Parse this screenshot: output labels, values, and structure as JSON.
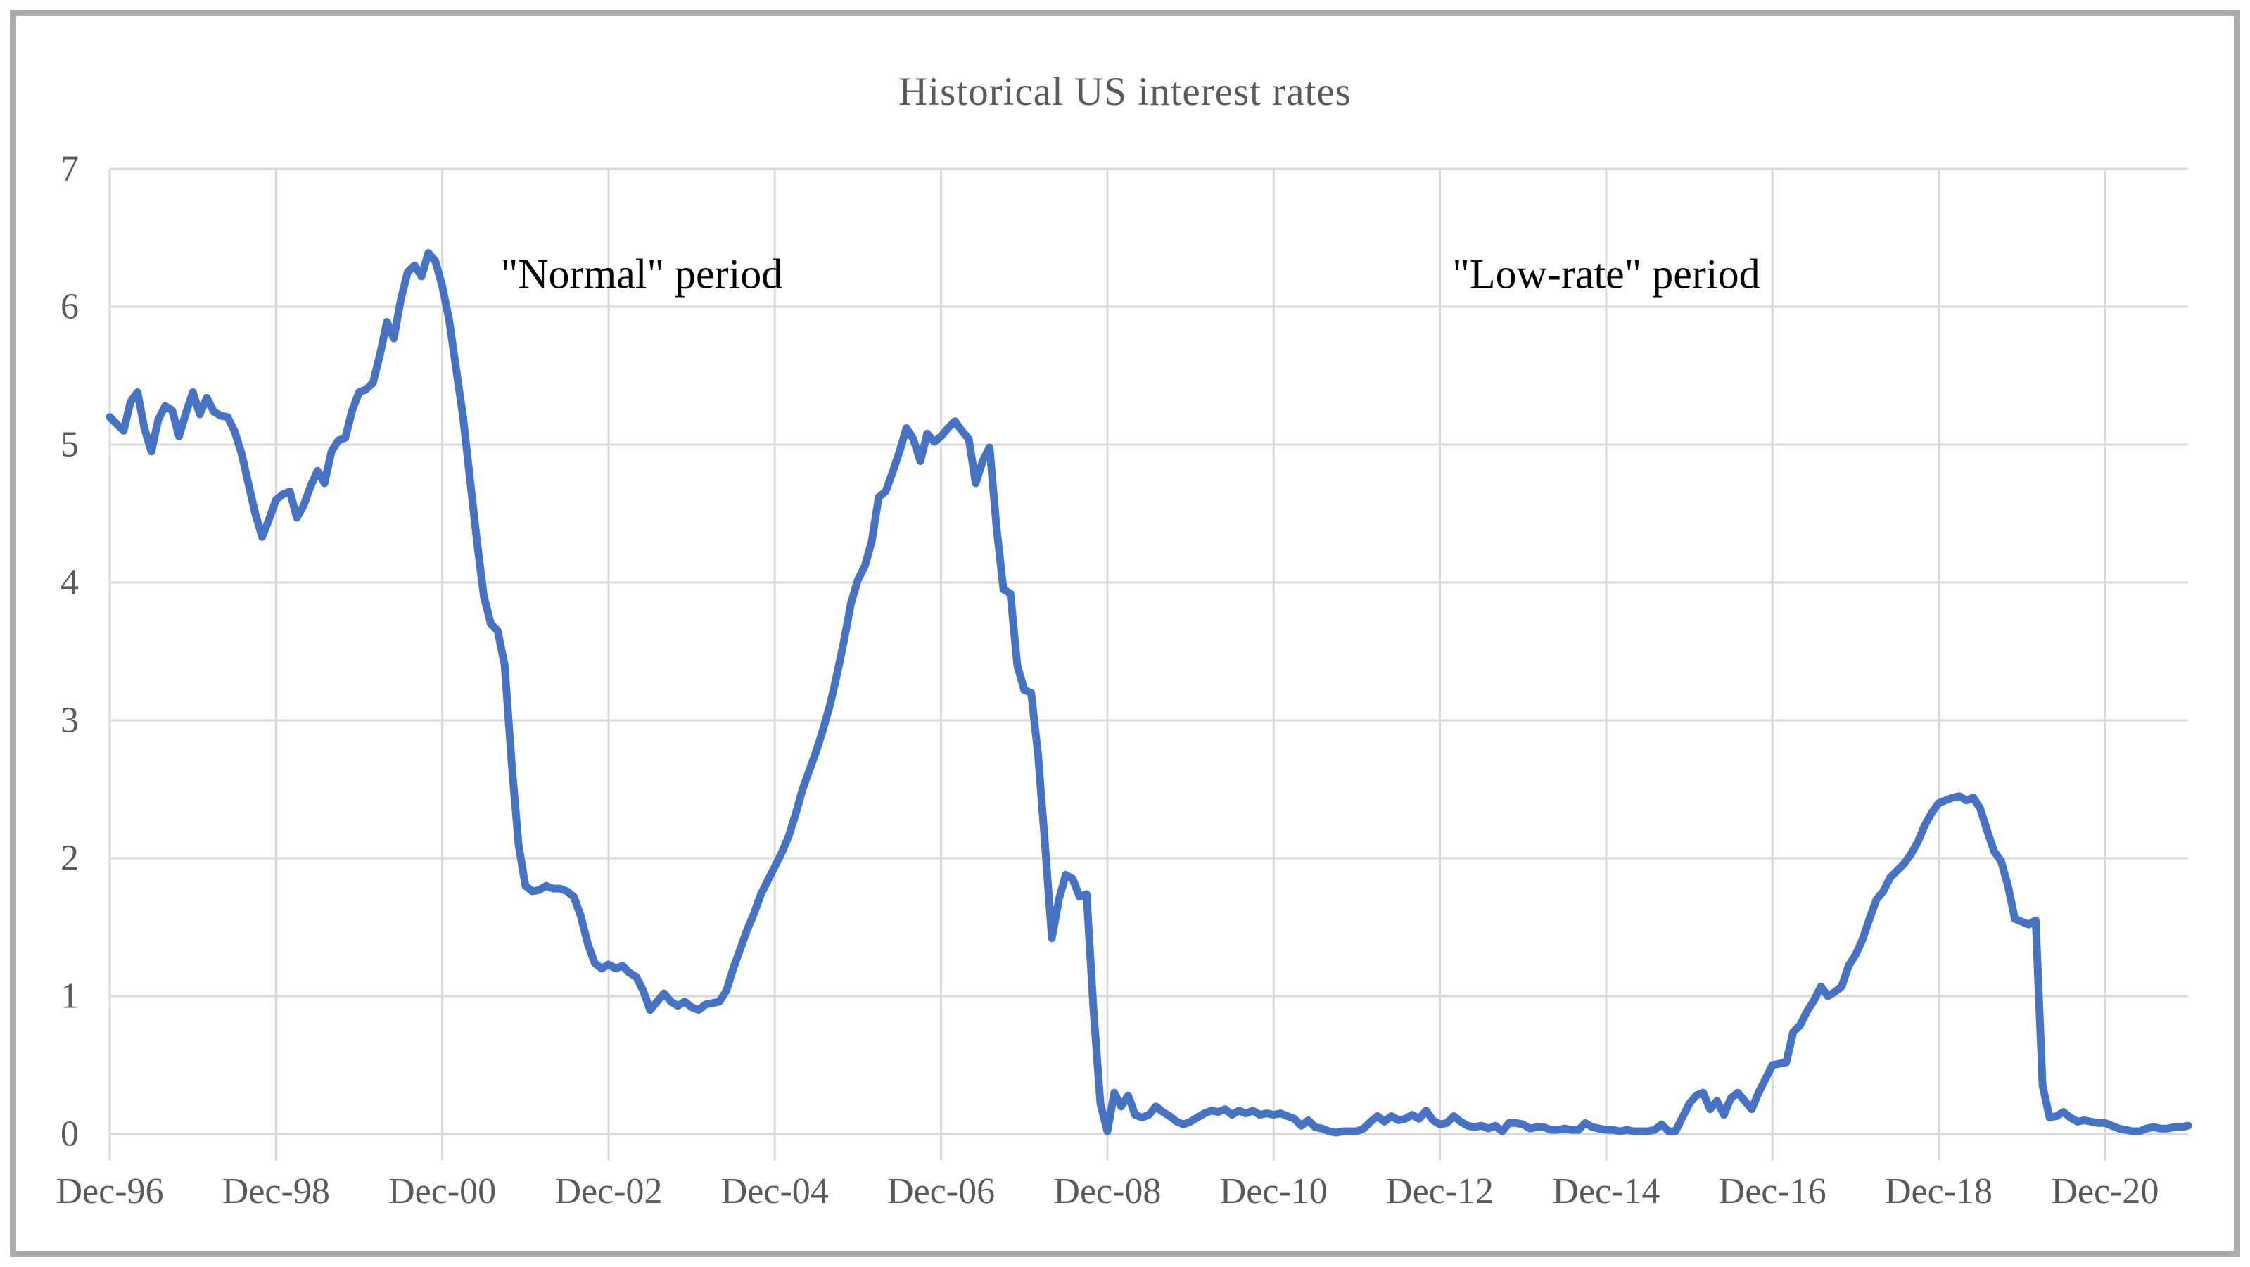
{
  "chart_data": {
    "type": "line",
    "title": "Historical US interest rates",
    "annotations": [
      {
        "id": "normal",
        "text": "\"Normal\" period"
      },
      {
        "id": "lowrate",
        "text": "\"Low-rate\" period"
      }
    ],
    "x_tick_labels": [
      "Dec-96",
      "Dec-98",
      "Dec-00",
      "Dec-02",
      "Dec-04",
      "Dec-06",
      "Dec-08",
      "Dec-10",
      "Dec-12",
      "Dec-14",
      "Dec-16",
      "Dec-18",
      "Dec-20"
    ],
    "x_tick_month_indices": [
      0,
      24,
      48,
      72,
      96,
      120,
      144,
      168,
      192,
      216,
      240,
      264,
      288
    ],
    "y_ticks": [
      0,
      1,
      2,
      3,
      4,
      5,
      6,
      7
    ],
    "ylim": [
      0,
      7
    ],
    "grid": true,
    "legend_position": "none",
    "series": [
      {
        "name": "US interest rate",
        "frequency": "monthly",
        "start": "Dec-1996",
        "end": "Dec-2021",
        "color": "#4472C4",
        "values": [
          5.2,
          5.15,
          5.1,
          5.31,
          5.38,
          5.12,
          4.95,
          5.18,
          5.28,
          5.25,
          5.06,
          5.23,
          5.38,
          5.22,
          5.34,
          5.24,
          5.21,
          5.2,
          5.1,
          4.94,
          4.72,
          4.5,
          4.33,
          4.46,
          4.6,
          4.64,
          4.66,
          4.47,
          4.56,
          4.7,
          4.81,
          4.72,
          4.95,
          5.03,
          5.05,
          5.25,
          5.38,
          5.4,
          5.45,
          5.65,
          5.89,
          5.77,
          6.05,
          6.25,
          6.3,
          6.22,
          6.39,
          6.33,
          6.15,
          5.9,
          5.55,
          5.2,
          4.75,
          4.3,
          3.9,
          3.7,
          3.65,
          3.4,
          2.7,
          2.1,
          1.8,
          1.76,
          1.77,
          1.8,
          1.78,
          1.78,
          1.76,
          1.72,
          1.58,
          1.38,
          1.24,
          1.2,
          1.23,
          1.2,
          1.22,
          1.17,
          1.14,
          1.04,
          0.9,
          0.96,
          1.02,
          0.96,
          0.93,
          0.96,
          0.92,
          0.9,
          0.94,
          0.95,
          0.96,
          1.04,
          1.2,
          1.34,
          1.48,
          1.6,
          1.74,
          1.84,
          1.94,
          2.04,
          2.16,
          2.32,
          2.5,
          2.64,
          2.78,
          2.94,
          3.12,
          3.34,
          3.58,
          3.85,
          4.02,
          4.12,
          4.3,
          4.62,
          4.66,
          4.8,
          4.95,
          5.12,
          5.04,
          4.88,
          5.08,
          5.02,
          5.06,
          5.12,
          5.17,
          5.1,
          5.04,
          4.72,
          4.88,
          4.98,
          4.4,
          3.95,
          3.92,
          3.4,
          3.22,
          3.2,
          2.75,
          2.1,
          1.42,
          1.7,
          1.88,
          1.85,
          1.72,
          1.74,
          0.9,
          0.22,
          0.02,
          0.3,
          0.2,
          0.28,
          0.14,
          0.12,
          0.14,
          0.2,
          0.16,
          0.13,
          0.09,
          0.07,
          0.09,
          0.12,
          0.15,
          0.17,
          0.16,
          0.18,
          0.14,
          0.17,
          0.15,
          0.17,
          0.14,
          0.15,
          0.14,
          0.15,
          0.13,
          0.11,
          0.06,
          0.1,
          0.05,
          0.04,
          0.02,
          0.01,
          0.02,
          0.02,
          0.02,
          0.04,
          0.09,
          0.13,
          0.09,
          0.13,
          0.1,
          0.11,
          0.14,
          0.11,
          0.17,
          0.1,
          0.07,
          0.08,
          0.13,
          0.09,
          0.06,
          0.05,
          0.06,
          0.04,
          0.06,
          0.02,
          0.08,
          0.08,
          0.07,
          0.04,
          0.05,
          0.05,
          0.03,
          0.03,
          0.04,
          0.03,
          0.03,
          0.08,
          0.05,
          0.04,
          0.03,
          0.03,
          0.02,
          0.03,
          0.02,
          0.02,
          0.02,
          0.03,
          0.07,
          0.02,
          0.02,
          0.12,
          0.22,
          0.28,
          0.3,
          0.18,
          0.24,
          0.14,
          0.26,
          0.3,
          0.24,
          0.18,
          0.3,
          0.4,
          0.5,
          0.51,
          0.52,
          0.74,
          0.79,
          0.89,
          0.97,
          1.07,
          1.0,
          1.03,
          1.07,
          1.22,
          1.3,
          1.41,
          1.56,
          1.7,
          1.76,
          1.86,
          1.91,
          1.96,
          2.03,
          2.12,
          2.24,
          2.33,
          2.4,
          2.42,
          2.44,
          2.45,
          2.42,
          2.44,
          2.36,
          2.2,
          2.05,
          1.98,
          1.8,
          1.56,
          1.54,
          1.52,
          1.55,
          0.35,
          0.12,
          0.13,
          0.16,
          0.12,
          0.09,
          0.1,
          0.09,
          0.08,
          0.08,
          0.06,
          0.04,
          0.03,
          0.02,
          0.02,
          0.04,
          0.05,
          0.04,
          0.04,
          0.05,
          0.05,
          0.06
        ]
      }
    ]
  },
  "styles": {
    "accent": "#4472C4",
    "grid_color": "#D9D9D9",
    "axis_text_color": "#595959",
    "annotation_color": "#000000",
    "border_color": "#ABABAB",
    "background": "#FFFFFF"
  }
}
